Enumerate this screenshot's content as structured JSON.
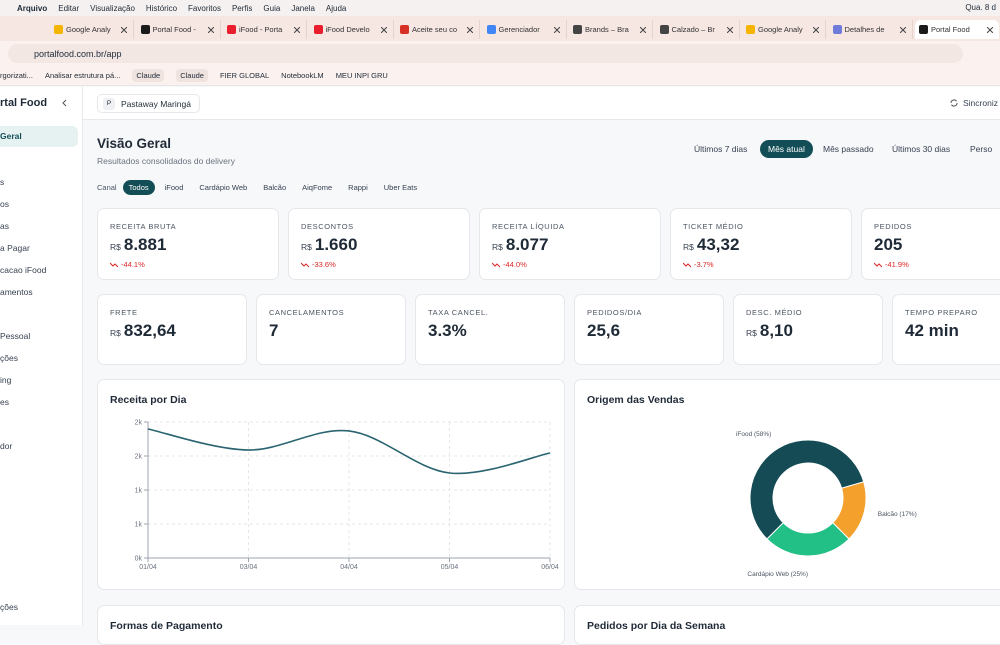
{
  "menubar": {
    "items": [
      "Arquivo",
      "Editar",
      "Visualização",
      "Histórico",
      "Favoritos",
      "Perfis",
      "Guia",
      "Janela",
      "Ajuda"
    ],
    "clock": "Qua. 8 d"
  },
  "tabs": [
    "Google Analy",
    "Portal Food -",
    "iFood - Porta",
    "iFood Develo",
    "Aceite seu co",
    "Gerenciador",
    "Brands – Bra",
    "Calzado – Br",
    "Google Analy",
    "Detalhes de",
    "Portal Food"
  ],
  "address": "portalfood.com.br/app",
  "bookmarks": [
    "rgorizati...",
    "Analisar estrutura pá...",
    "Claude",
    "Claude",
    "FIER GLOBAL",
    "NotebookLM",
    "MEU INPI GRU"
  ],
  "sidebar": {
    "brand": "rtal Food",
    "items": [
      "Geral",
      "s",
      "os",
      "as",
      "a Pagar",
      "cacao iFood",
      "amentos",
      "Pessoal",
      "ções",
      "ing",
      "es",
      "dor"
    ],
    "footer": "ções"
  },
  "header": {
    "store_initial": "P",
    "store": "Pastaway Maringá",
    "sync": "Sincroniz"
  },
  "page": {
    "title": "Visão Geral",
    "subtitle": "Resultados consolidados do delivery"
  },
  "periods": [
    "Últimos 7 dias",
    "Mês atual",
    "Mês passado",
    "Últimos 30 dias",
    "Perso"
  ],
  "channel_label": "Canal",
  "channels": [
    "Todos",
    "iFood",
    "Cardápio Web",
    "Balcão",
    "AiqFome",
    "Rappi",
    "Uber Eats"
  ],
  "kpis_main": [
    {
      "label": "RECEITA BRUTA",
      "currency": "R$",
      "value": "8.881",
      "change": "-44.1%"
    },
    {
      "label": "DESCONTOS",
      "currency": "R$",
      "value": "1.660",
      "change": "-33.6%"
    },
    {
      "label": "RECEITA LÍQUIDA",
      "currency": "R$",
      "value": "8.077",
      "change": "-44.0%"
    },
    {
      "label": "TICKET MÉDIO",
      "currency": "R$",
      "value": "43,32",
      "change": "-3.7%"
    },
    {
      "label": "PEDIDOS",
      "value": "205",
      "change": "-41.9%"
    }
  ],
  "kpis_secondary": [
    {
      "label": "FRETE",
      "currency": "R$",
      "value": "832,64"
    },
    {
      "label": "CANCELAMENTOS",
      "value": "7"
    },
    {
      "label": "TAXA CANCEL.",
      "value": "3.3%"
    },
    {
      "label": "PEDIDOS/DIA",
      "value": "25,6"
    },
    {
      "label": "DESC. MÉDIO",
      "currency": "R$",
      "value": "8,10"
    },
    {
      "label": "TEMPO PREPARO",
      "value": "42 min"
    }
  ],
  "revenue_chart": {
    "type": "line",
    "title": "Receita por Dia",
    "categories": [
      "01/04",
      "03/04",
      "04/04",
      "05/04",
      "06/04"
    ],
    "values": [
      1897,
      1588,
      1868,
      1250,
      1544
    ],
    "color": "#2a6470",
    "ylim": [
      0,
      2000
    ],
    "yticks": [
      {
        "value": 0,
        "label": "0k"
      },
      {
        "value": 500,
        "label": "1k"
      },
      {
        "value": 1000,
        "label": "1k"
      },
      {
        "value": 1500,
        "label": "2k"
      },
      {
        "value": 2000,
        "label": "2k"
      }
    ],
    "grid": true
  },
  "origin_chart": {
    "type": "pie",
    "title": "Origem das Vendas",
    "categories": [
      "iFood",
      "Balcão",
      "Cardápio Web"
    ],
    "values": [
      58,
      17,
      25
    ],
    "value_labels": [
      "iFood (58%)",
      "Balcão (17%)",
      "Cardápio Web (25%)"
    ],
    "colors": [
      "#144b55",
      "#f3a12c",
      "#22bf87"
    ]
  },
  "bottom_cards": [
    "Formas de Pagamento",
    "Pedidos por Dia da Semana"
  ]
}
